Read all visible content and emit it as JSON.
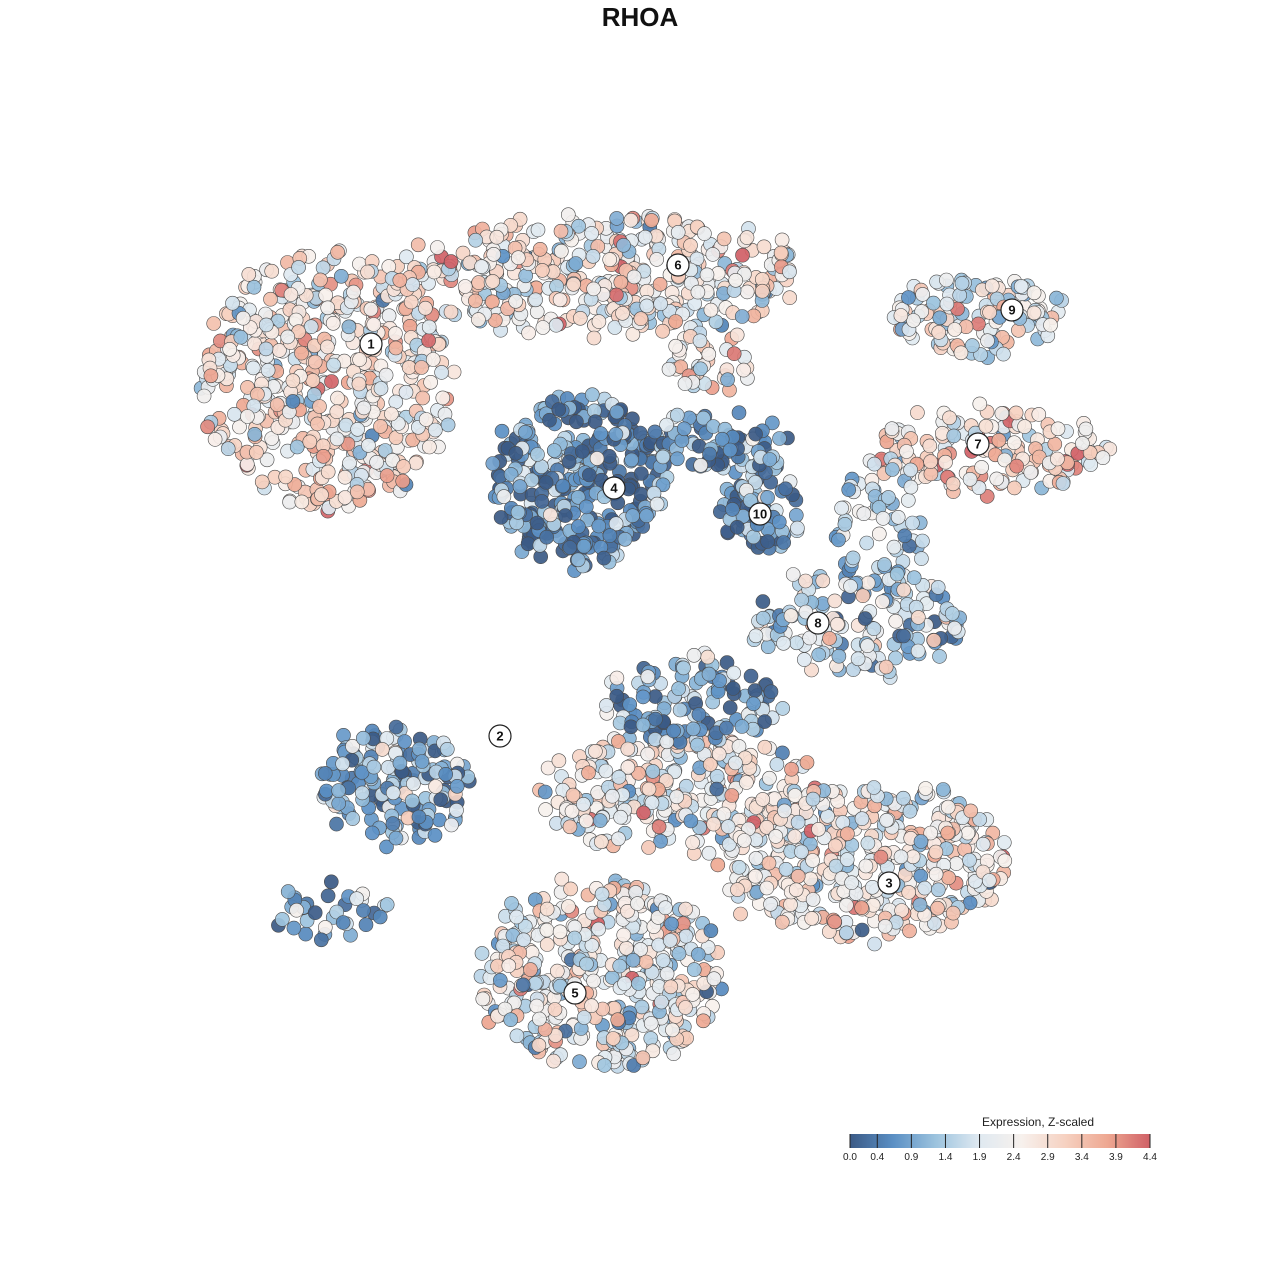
{
  "chart_data": {
    "type": "scatter",
    "title": "RHOA",
    "xlabel": "",
    "ylabel": "",
    "color_scale": {
      "title": "Expression, Z-scaled",
      "min": 0.0,
      "max": 4.4,
      "ticks": [
        "0.0",
        "0.4",
        "0.9",
        "1.4",
        "1.9",
        "2.4",
        "2.9",
        "3.4",
        "3.9",
        "4.4"
      ],
      "palette": [
        "#3b5a86",
        "#5a8fc4",
        "#9cc3de",
        "#dfe9f1",
        "#f7f1ed",
        "#f6d2c2",
        "#eea892",
        "#d06066"
      ],
      "placement": "bottom-right"
    },
    "clusters": [
      {
        "label": "1",
        "mean_expression": 2.6
      },
      {
        "label": "2",
        "mean_expression": 0.9
      },
      {
        "label": "3",
        "mean_expression": 2.4
      },
      {
        "label": "4",
        "mean_expression": 0.6
      },
      {
        "label": "5",
        "mean_expression": 2.2
      },
      {
        "label": "6",
        "mean_expression": 2.5
      },
      {
        "label": "7",
        "mean_expression": 2.7
      },
      {
        "label": "8",
        "mean_expression": 1.6
      },
      {
        "label": "9",
        "mean_expression": 2.3
      },
      {
        "label": "10",
        "mean_expression": 0.9
      }
    ],
    "grid": false,
    "legend": "bottom-right"
  }
}
